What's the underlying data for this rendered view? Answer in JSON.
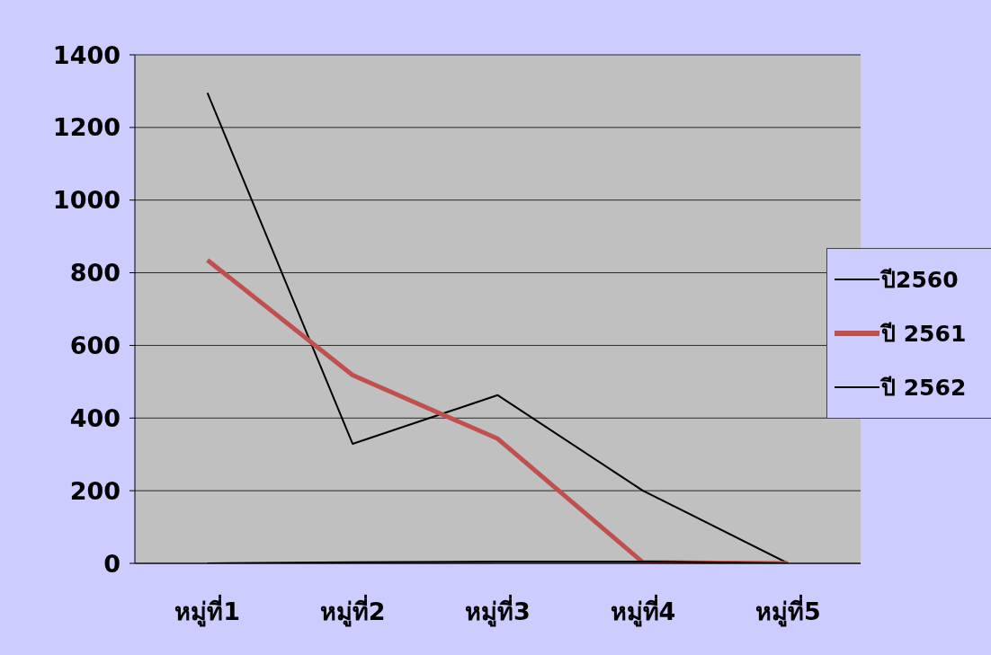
{
  "chart_data": {
    "type": "line",
    "categories": [
      "หมู่ที่1",
      "หมู่ที่2",
      "หมู่ที่3",
      "หมู่ที่4",
      "หมู่ที่5"
    ],
    "series": [
      {
        "name": "ปี2560",
        "color": "#000000",
        "values": [
          1295,
          329,
          463,
          200,
          0
        ]
      },
      {
        "name": "ปี 2561",
        "color": "#c0504d",
        "values": [
          835,
          518,
          343,
          3,
          0
        ]
      },
      {
        "name": "ปี 2562",
        "color": "#000000",
        "values": [
          0,
          3,
          5,
          5,
          0
        ]
      }
    ],
    "ylim": [
      0,
      1400
    ],
    "yticks": [
      0,
      200,
      400,
      600,
      800,
      1000,
      1200,
      1400
    ],
    "grid": "y",
    "legend": "right",
    "marker": "none",
    "line_style": "solid"
  }
}
